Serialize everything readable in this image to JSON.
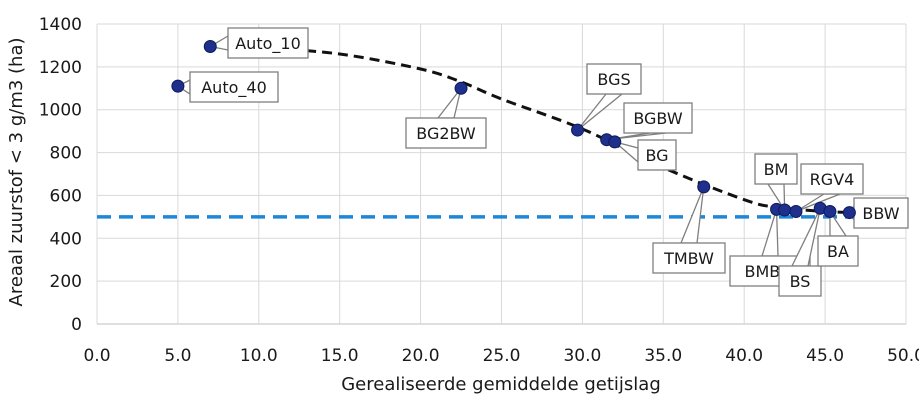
{
  "chart_data": {
    "type": "scatter",
    "xlabel": "Gerealiseerde gemiddelde getijslag",
    "ylabel": "Areaal zuurstof < 3 g/m3 (ha)",
    "xlim": [
      0,
      50
    ],
    "ylim": [
      0,
      1400
    ],
    "x_ticks": [
      "0.0",
      "5.0",
      "10.0",
      "15.0",
      "20.0",
      "25.0",
      "30.0",
      "35.0",
      "40.0",
      "45.0",
      "50.0"
    ],
    "y_ticks": [
      "0",
      "200",
      "400",
      "600",
      "800",
      "1000",
      "1200",
      "1400"
    ],
    "grid": true,
    "points": [
      {
        "label": "Auto_10",
        "x": 7.0,
        "y": 1295
      },
      {
        "label": "Auto_40",
        "x": 5.0,
        "y": 1110
      },
      {
        "label": "BG2BW",
        "x": 22.5,
        "y": 1100
      },
      {
        "label": "BGS",
        "x": 29.7,
        "y": 905
      },
      {
        "label": "BGBW",
        "x": 31.5,
        "y": 860
      },
      {
        "label": "BG",
        "x": 32.0,
        "y": 850
      },
      {
        "label": "TMBW",
        "x": 37.5,
        "y": 640
      },
      {
        "label": "BMBW",
        "x": 42.0,
        "y": 535
      },
      {
        "label": "BM",
        "x": 42.5,
        "y": 532
      },
      {
        "label": "RGV4",
        "x": 43.2,
        "y": 525
      },
      {
        "label": "BS",
        "x": 44.7,
        "y": 540
      },
      {
        "label": "BA",
        "x": 45.3,
        "y": 525
      },
      {
        "label": "BBW",
        "x": 46.5,
        "y": 520
      }
    ],
    "trend_line": {
      "style": "dashed",
      "color": "#111111",
      "x": [
        7,
        10,
        15,
        20,
        22.5,
        25,
        30,
        35,
        40,
        42,
        45,
        47
      ],
      "y": [
        1300,
        1290,
        1260,
        1190,
        1130,
        1050,
        910,
        730,
        580,
        545,
        525,
        520
      ]
    },
    "threshold": {
      "y": 500,
      "color": "#1e88d8",
      "style": "dashed"
    },
    "colors": {
      "marker": "#1f2f8c",
      "grid": "#d9d9d9"
    }
  }
}
